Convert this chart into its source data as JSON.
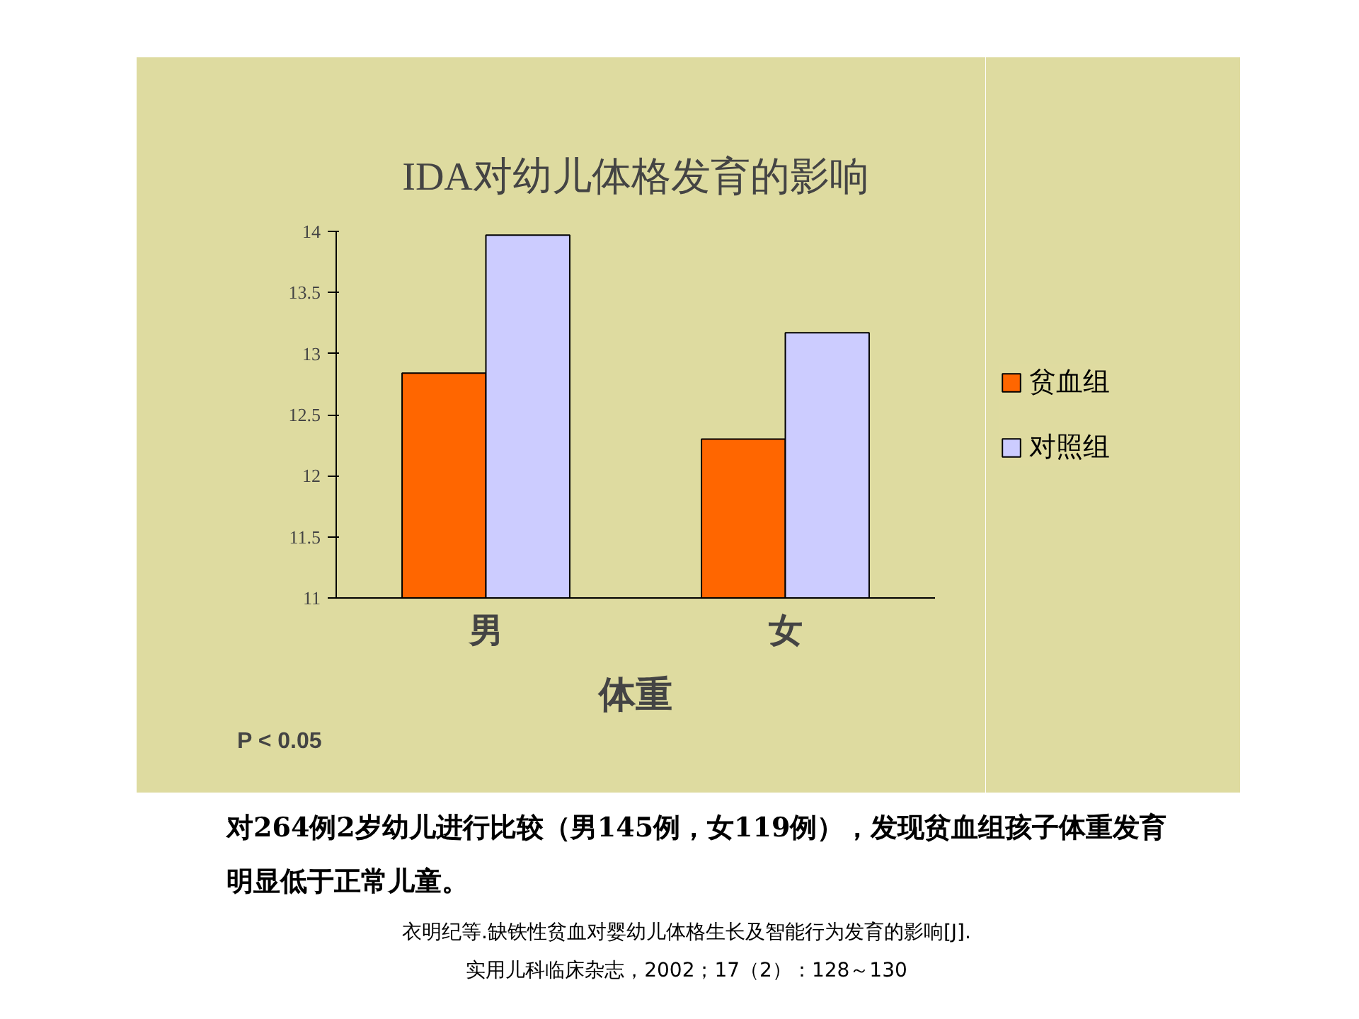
{
  "chart_data": {
    "type": "bar",
    "title": "IDA对幼儿体格发育的影响",
    "xlabel": "体重",
    "categories": [
      "男",
      "女"
    ],
    "series": [
      {
        "name": "贫血组",
        "color": "#ff6600",
        "values": [
          12.84,
          12.3
        ]
      },
      {
        "name": "对照组",
        "color": "#ccccff",
        "values": [
          13.97,
          13.17
        ]
      }
    ],
    "ylim": [
      11,
      14
    ],
    "yticks": [
      11,
      11.5,
      12,
      12.5,
      13,
      13.5,
      14
    ],
    "grid": false,
    "legend": "right",
    "annotations": [
      "P < 0.05",
      "对264例2岁幼儿进行比较（男145例，女119例），发现贫血组孩子体重发育明显低于正常儿童。",
      "衣明纪等.缺铁性贫血对婴幼儿体格生长及智能行为发育的影响[J].",
      "实用儿科临床杂志，2002；17（2）：128～130"
    ]
  }
}
